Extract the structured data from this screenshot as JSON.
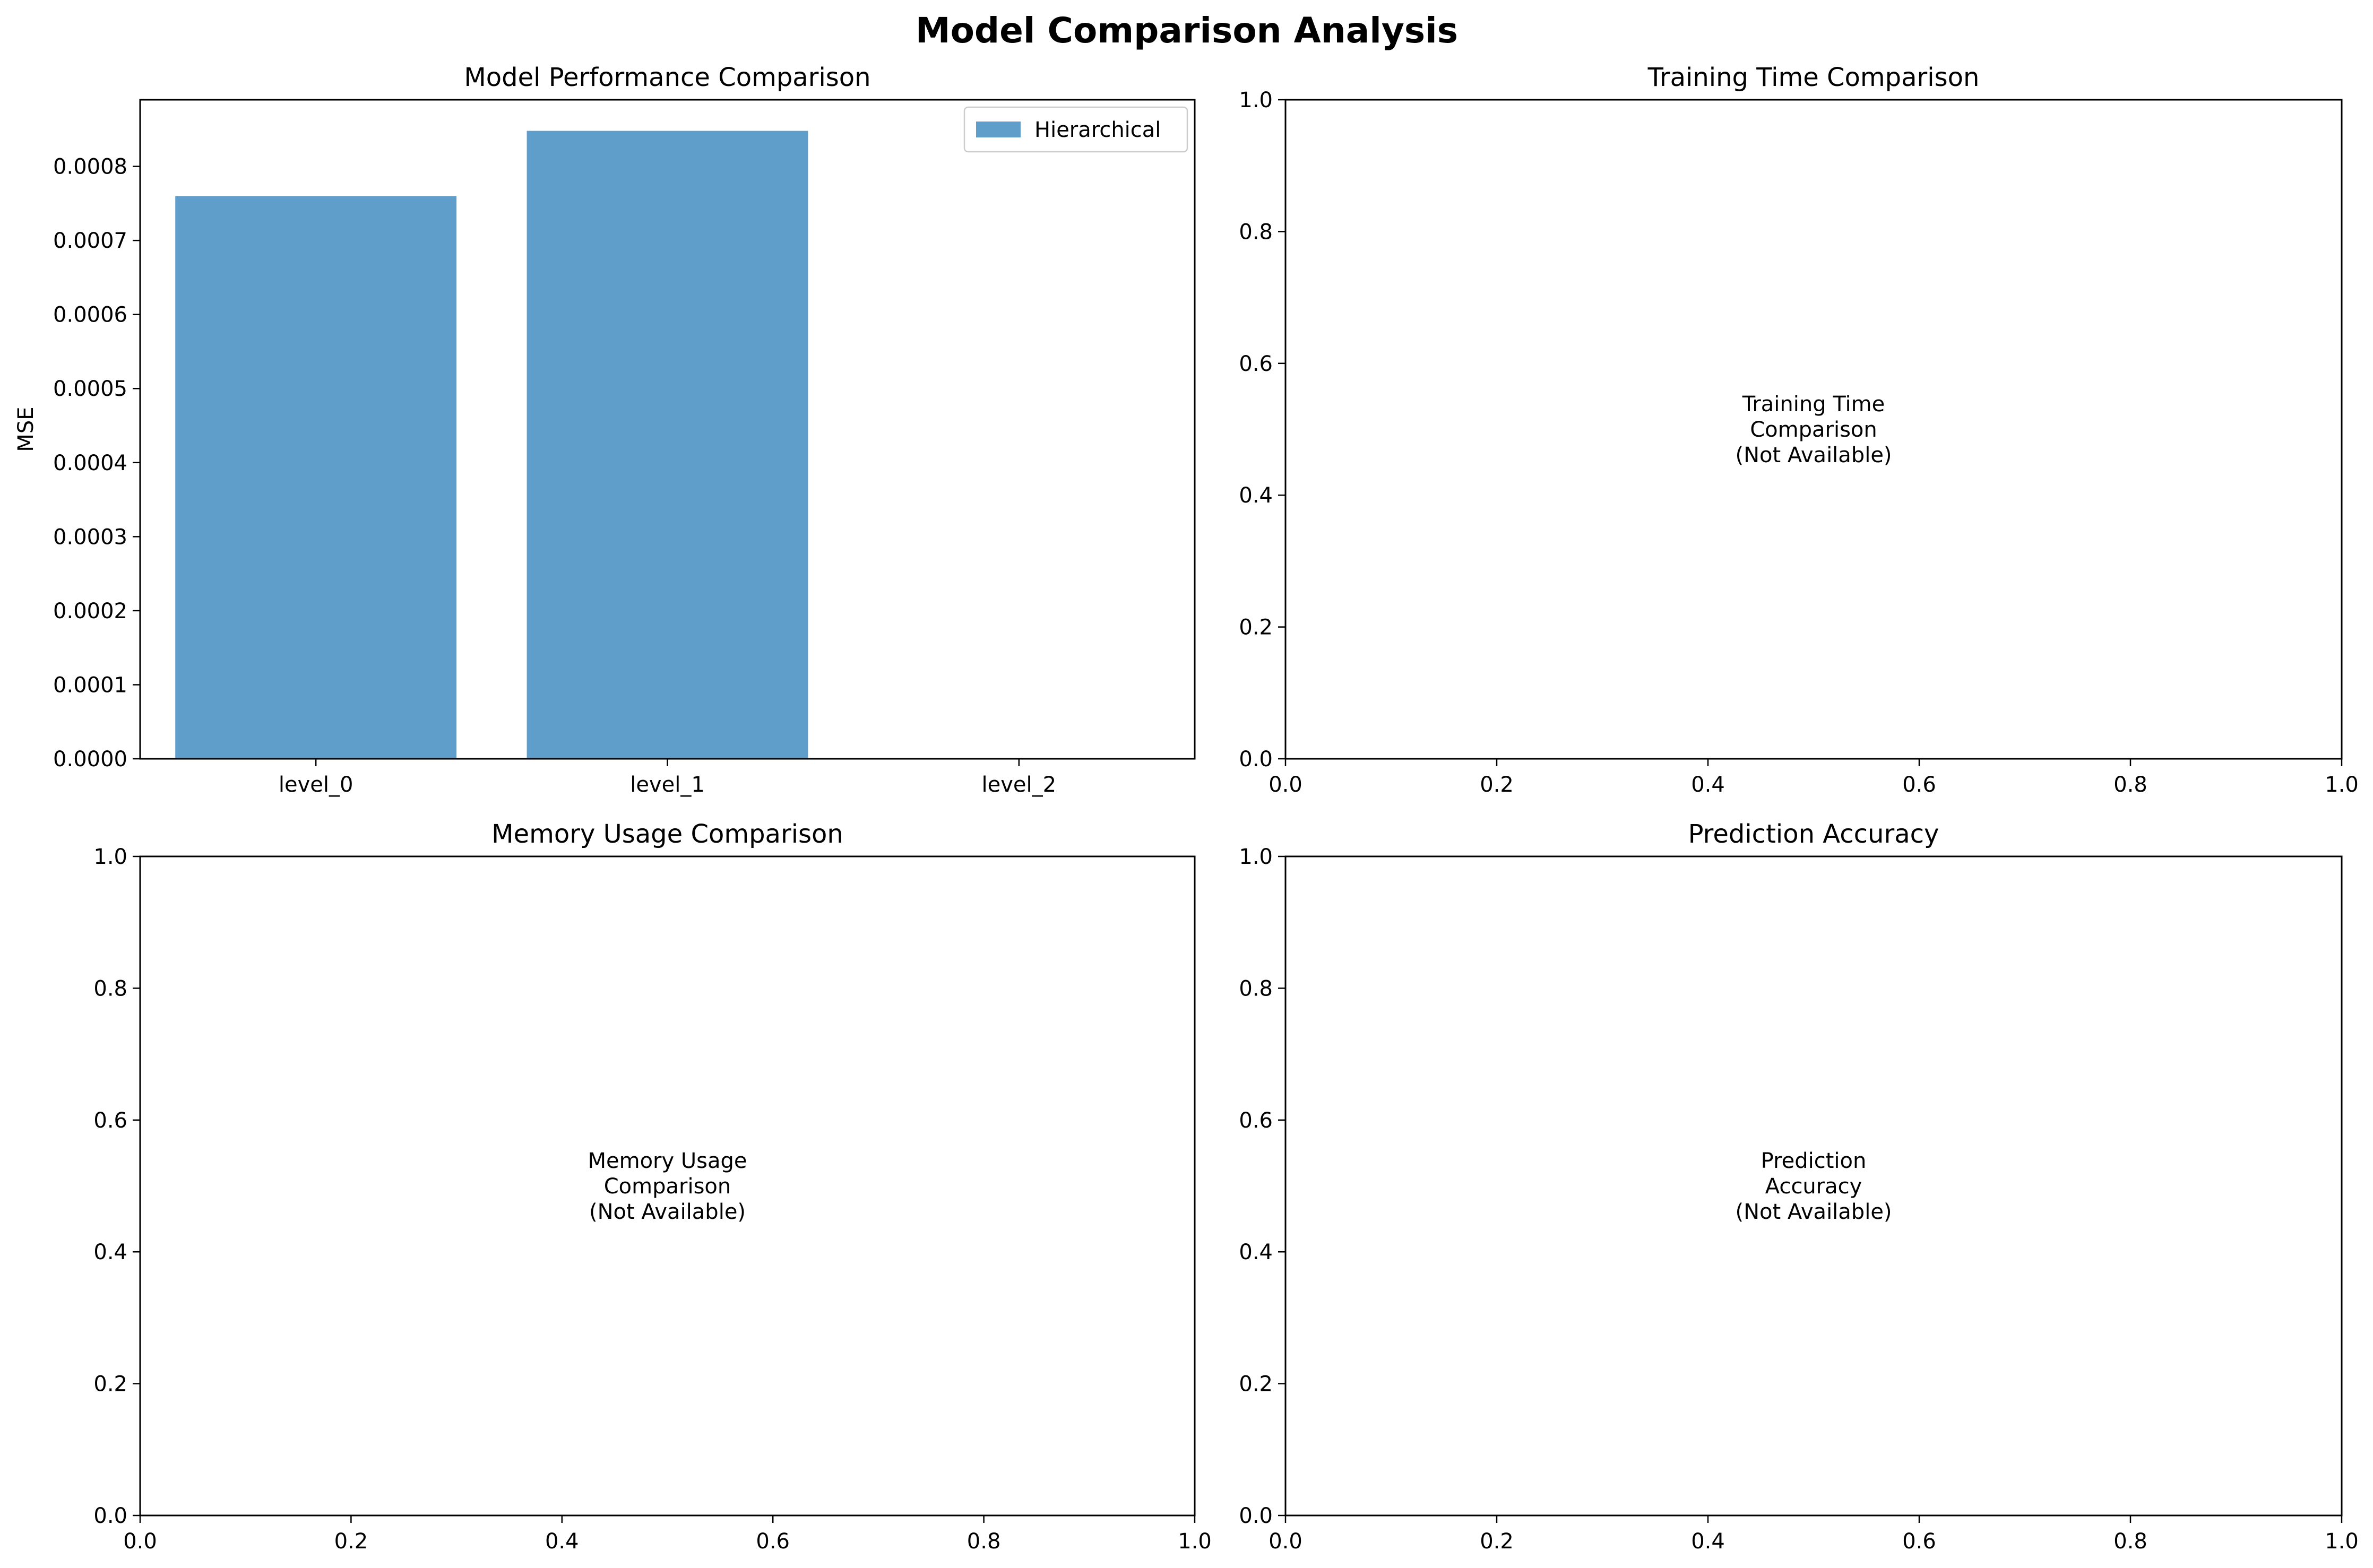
{
  "figure_title": "Model Comparison Analysis",
  "colors": {
    "bar": "#5f9ecb",
    "axis": "#000000",
    "background": "#ffffff"
  },
  "chart_data": [
    {
      "type": "bar",
      "title": "Model Performance Comparison",
      "categories": [
        "level_0",
        "level_1",
        "level_2"
      ],
      "series": [
        {
          "name": "Hierarchical",
          "values": [
            0.00076,
            0.000848,
            null
          ]
        }
      ],
      "xlabel": "",
      "ylabel": "MSE",
      "ylim": [
        0,
        0.00089
      ],
      "yticks": [
        "0.0000",
        "0.0001",
        "0.0002",
        "0.0003",
        "0.0004",
        "0.0005",
        "0.0006",
        "0.0007",
        "0.0008"
      ],
      "legend": {
        "location": "upper-right"
      },
      "grid": false
    },
    {
      "type": "bar",
      "title": "Training Time Comparison",
      "xlim": [
        0,
        1
      ],
      "ylim": [
        0,
        1
      ],
      "xticks": [
        "0.0",
        "0.2",
        "0.4",
        "0.6",
        "0.8",
        "1.0"
      ],
      "yticks": [
        "0.0",
        "0.2",
        "0.4",
        "0.6",
        "0.8",
        "1.0"
      ],
      "annotation": [
        "Training Time",
        "Comparison",
        "(Not Available)"
      ],
      "grid": false
    },
    {
      "type": "bar",
      "title": "Memory Usage Comparison",
      "xlim": [
        0,
        1
      ],
      "ylim": [
        0,
        1
      ],
      "xticks": [
        "0.0",
        "0.2",
        "0.4",
        "0.6",
        "0.8",
        "1.0"
      ],
      "yticks": [
        "0.0",
        "0.2",
        "0.4",
        "0.6",
        "0.8",
        "1.0"
      ],
      "annotation": [
        "Memory Usage",
        "Comparison",
        "(Not Available)"
      ],
      "grid": false
    },
    {
      "type": "bar",
      "title": "Prediction Accuracy",
      "xlim": [
        0,
        1
      ],
      "ylim": [
        0,
        1
      ],
      "xticks": [
        "0.0",
        "0.2",
        "0.4",
        "0.6",
        "0.8",
        "1.0"
      ],
      "yticks": [
        "0.0",
        "0.2",
        "0.4",
        "0.6",
        "0.8",
        "1.0"
      ],
      "annotation": [
        "Prediction",
        "Accuracy",
        "(Not Available)"
      ],
      "grid": false
    }
  ]
}
